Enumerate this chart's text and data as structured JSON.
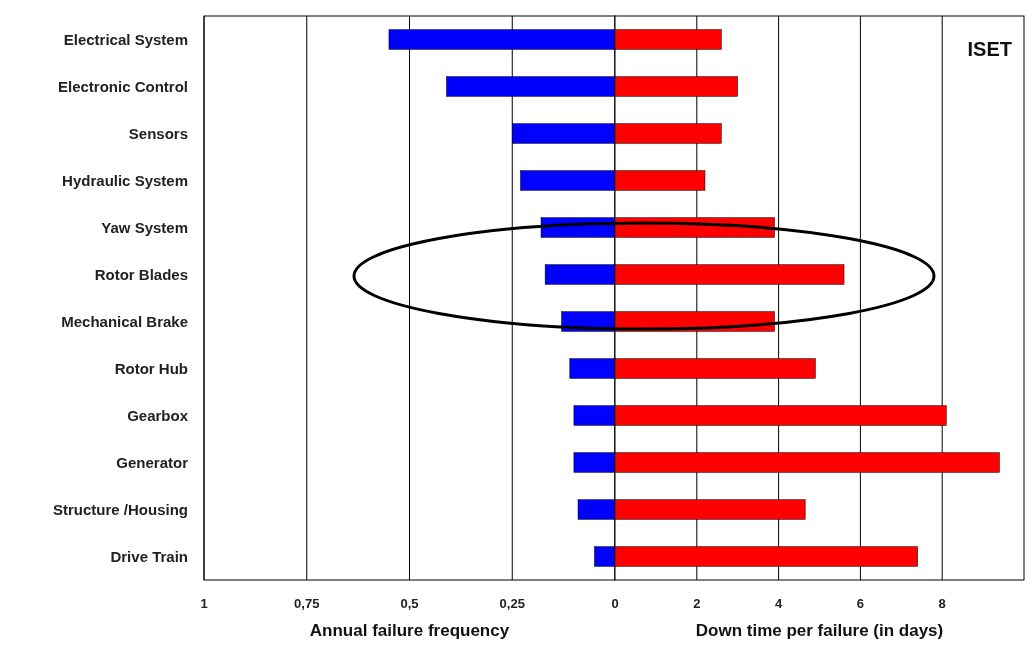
{
  "chart_data": [
    {
      "type": "bar",
      "orientation": "horizontal",
      "categories": [
        "Electrical System",
        "Electronic Control",
        "Sensors",
        "Hydraulic System",
        "Yaw System",
        "Rotor Blades",
        "Mechanical Brake",
        "Rotor Hub",
        "Gearbox",
        "Generator",
        "Structure /Housing",
        "Drive Train"
      ],
      "series": [
        {
          "color": "#0000ff",
          "values": [
            0.55,
            0.41,
            0.25,
            0.23,
            0.18,
            0.17,
            0.13,
            0.11,
            0.1,
            0.1,
            0.09,
            0.05
          ]
        }
      ],
      "xlim": [
        1,
        0
      ],
      "xticks": [
        {
          "value": 1,
          "label": "1"
        },
        {
          "value": 0.75,
          "label": "0,75"
        },
        {
          "value": 0.5,
          "label": "0,5"
        },
        {
          "value": 0.25,
          "label": "0,25"
        },
        {
          "value": 0,
          "label": "0"
        }
      ],
      "xlabel": "Annual failure frequency",
      "grid": "x"
    },
    {
      "type": "bar",
      "orientation": "horizontal",
      "categories": [
        null,
        null,
        null,
        null,
        null,
        null,
        null,
        null,
        null,
        null,
        null,
        null
      ],
      "series": [
        {
          "color": "#ff0000",
          "values": [
            2.6,
            3.0,
            2.6,
            2.2,
            3.9,
            5.6,
            3.9,
            4.9,
            8.1,
            9.4,
            4.65,
            7.4
          ]
        }
      ],
      "xlim": [
        0,
        10
      ],
      "xticks": [
        2,
        4,
        6,
        8
      ],
      "xlabel": "Down time per failure (in days)",
      "grid": "x",
      "tick_labels": "x",
      "annotations": [
        "ISET"
      ]
    }
  ]
}
